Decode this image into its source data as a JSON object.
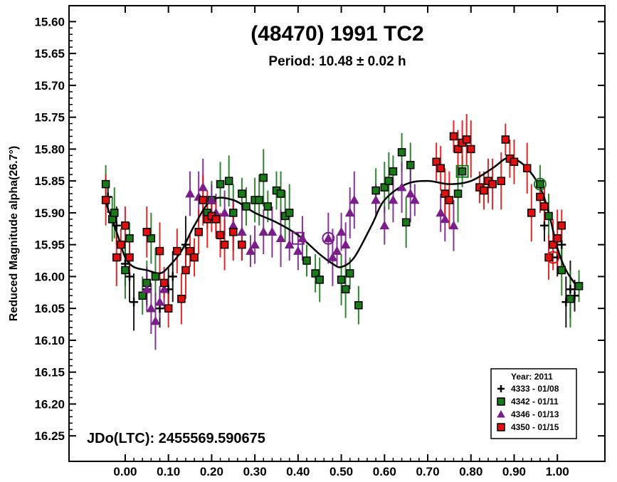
{
  "chart_data": {
    "type": "scatter",
    "title": "(48470) 1991 TC2",
    "subtitle": "Period: 10.48 ± 0.02 h",
    "ylabel": "Reduced Magnitude alpha(26.7°)",
    "xlabel": "",
    "annotation": "JDo(LTC): 2455569.590675",
    "xlim": [
      -0.13,
      1.11
    ],
    "ylim": [
      15.575,
      16.29
    ],
    "y_inverted": true,
    "grid": false,
    "legend_position": "bottom-right",
    "legend_title": "Year: 2011",
    "x_ticks": [
      "0.00",
      "0.10",
      "0.20",
      "0.30",
      "0.40",
      "0.50",
      "0.60",
      "0.70",
      "0.80",
      "0.90",
      "1.00"
    ],
    "y_ticks": [
      "15.60",
      "15.65",
      "15.70",
      "15.75",
      "15.80",
      "15.85",
      "15.90",
      "15.95",
      "16.00",
      "16.05",
      "16.10",
      "16.15",
      "16.20",
      "16.25"
    ],
    "fit_curve": [
      [
        -0.05,
        15.875
      ],
      [
        -0.02,
        15.93
      ],
      [
        0.0,
        15.97
      ],
      [
        0.02,
        15.985
      ],
      [
        0.05,
        15.99
      ],
      [
        0.08,
        15.995
      ],
      [
        0.1,
        15.985
      ],
      [
        0.13,
        15.96
      ],
      [
        0.16,
        15.92
      ],
      [
        0.2,
        15.88
      ],
      [
        0.25,
        15.88
      ],
      [
        0.3,
        15.9
      ],
      [
        0.35,
        15.915
      ],
      [
        0.4,
        15.935
      ],
      [
        0.45,
        15.965
      ],
      [
        0.48,
        15.98
      ],
      [
        0.5,
        15.985
      ],
      [
        0.53,
        15.97
      ],
      [
        0.57,
        15.92
      ],
      [
        0.6,
        15.88
      ],
      [
        0.65,
        15.855
      ],
      [
        0.7,
        15.85
      ],
      [
        0.75,
        15.855
      ],
      [
        0.8,
        15.85
      ],
      [
        0.85,
        15.83
      ],
      [
        0.88,
        15.815
      ],
      [
        0.9,
        15.815
      ],
      [
        0.93,
        15.83
      ],
      [
        0.96,
        15.86
      ],
      [
        0.98,
        15.9
      ],
      [
        1.0,
        15.955
      ],
      [
        1.02,
        15.99
      ],
      [
        1.05,
        16.02
      ]
    ],
    "series": [
      {
        "name": "4333 - 01/08",
        "marker": "plus",
        "color": "#000000",
        "points": [
          [
            -0.04,
            15.875
          ],
          [
            -0.02,
            15.92
          ],
          [
            0.0,
            15.98
          ],
          [
            0.01,
            16.0
          ],
          [
            0.02,
            16.04
          ],
          [
            0.05,
            16.02
          ],
          [
            0.08,
            16.05
          ],
          [
            0.1,
            16.02
          ],
          [
            0.11,
            16.0
          ],
          [
            0.14,
            15.95
          ],
          [
            0.97,
            15.92
          ],
          [
            1.0,
            15.97
          ],
          [
            1.01,
            15.95
          ],
          [
            1.02,
            16.04
          ],
          [
            1.03,
            16.02
          ],
          [
            1.04,
            16.03
          ]
        ]
      },
      {
        "name": "4342 - 01/11",
        "marker": "square",
        "color": "#1a7a1a",
        "points": [
          [
            -0.045,
            15.855
          ],
          [
            -0.03,
            15.91
          ],
          [
            -0.025,
            15.9
          ],
          [
            0.0,
            15.99
          ],
          [
            0.01,
            15.94
          ],
          [
            0.04,
            16.03
          ],
          [
            0.05,
            16.01
          ],
          [
            0.06,
            15.94
          ],
          [
            0.07,
            16.0
          ],
          [
            0.19,
            15.9
          ],
          [
            0.2,
            15.88
          ],
          [
            0.22,
            15.855
          ],
          [
            0.24,
            15.85
          ],
          [
            0.25,
            15.9
          ],
          [
            0.27,
            15.87
          ],
          [
            0.28,
            15.89
          ],
          [
            0.3,
            15.88
          ],
          [
            0.31,
            15.88
          ],
          [
            0.32,
            15.845
          ],
          [
            0.33,
            15.89
          ],
          [
            0.35,
            15.865
          ],
          [
            0.36,
            15.87
          ],
          [
            0.37,
            15.905
          ],
          [
            0.38,
            15.9
          ],
          [
            0.42,
            15.975
          ],
          [
            0.44,
            15.995
          ],
          [
            0.45,
            16.005
          ],
          [
            0.5,
            16.005
          ],
          [
            0.51,
            16.02
          ],
          [
            0.52,
            15.995
          ],
          [
            0.54,
            16.045
          ],
          [
            0.58,
            15.865
          ],
          [
            0.6,
            15.86
          ],
          [
            0.61,
            15.85
          ],
          [
            0.62,
            15.835
          ],
          [
            0.64,
            15.805
          ],
          [
            0.66,
            15.825
          ],
          [
            0.65,
            15.915
          ],
          [
            0.77,
            15.87
          ],
          [
            0.78,
            15.835
          ],
          [
            0.96,
            15.855
          ],
          [
            0.98,
            15.905
          ],
          [
            1.01,
            15.99
          ],
          [
            1.03,
            16.035
          ],
          [
            1.05,
            16.015
          ]
        ]
      },
      {
        "name": "4346 - 01/13",
        "marker": "triangle",
        "color": "#7a1f8a",
        "points": [
          [
            0.05,
            16.02
          ],
          [
            0.06,
            16.05
          ],
          [
            0.07,
            16.07
          ],
          [
            0.08,
            16.04
          ],
          [
            0.09,
            16.02
          ],
          [
            0.15,
            15.87
          ],
          [
            0.17,
            15.875
          ],
          [
            0.18,
            15.86
          ],
          [
            0.2,
            15.88
          ],
          [
            0.21,
            15.9
          ],
          [
            0.23,
            15.9
          ],
          [
            0.25,
            15.92
          ],
          [
            0.27,
            15.93
          ],
          [
            0.29,
            15.96
          ],
          [
            0.3,
            15.95
          ],
          [
            0.32,
            15.93
          ],
          [
            0.34,
            15.93
          ],
          [
            0.36,
            15.94
          ],
          [
            0.38,
            15.95
          ],
          [
            0.4,
            15.96
          ],
          [
            0.41,
            15.94
          ],
          [
            0.47,
            15.94
          ],
          [
            0.48,
            15.97
          ],
          [
            0.49,
            15.96
          ],
          [
            0.5,
            15.93
          ],
          [
            0.51,
            15.95
          ],
          [
            0.52,
            15.9
          ],
          [
            0.53,
            15.88
          ],
          [
            0.58,
            15.88
          ],
          [
            0.6,
            15.92
          ],
          [
            0.62,
            15.88
          ],
          [
            0.64,
            15.86
          ],
          [
            0.66,
            15.87
          ],
          [
            0.67,
            15.88
          ],
          [
            0.73,
            15.9
          ],
          [
            0.74,
            15.91
          ],
          [
            0.76,
            15.92
          ]
        ]
      },
      {
        "name": "4350 - 01/15",
        "marker": "square",
        "color": "#e01010",
        "points": [
          [
            -0.045,
            15.88
          ],
          [
            -0.02,
            15.97
          ],
          [
            -0.01,
            15.95
          ],
          [
            0.0,
            15.92
          ],
          [
            0.01,
            15.97
          ],
          [
            0.05,
            15.93
          ],
          [
            0.08,
            15.96
          ],
          [
            0.09,
            16.01
          ],
          [
            0.1,
            16.05
          ],
          [
            0.12,
            15.96
          ],
          [
            0.13,
            16.035
          ],
          [
            0.14,
            15.99
          ],
          [
            0.15,
            15.96
          ],
          [
            0.16,
            15.97
          ],
          [
            0.17,
            15.93
          ],
          [
            0.18,
            15.88
          ],
          [
            0.19,
            15.91
          ],
          [
            0.2,
            15.905
          ],
          [
            0.21,
            15.91
          ],
          [
            0.22,
            15.935
          ],
          [
            0.23,
            15.95
          ],
          [
            0.25,
            15.93
          ],
          [
            0.27,
            15.95
          ],
          [
            0.72,
            15.82
          ],
          [
            0.73,
            15.83
          ],
          [
            0.74,
            15.87
          ],
          [
            0.75,
            15.88
          ],
          [
            0.76,
            15.78
          ],
          [
            0.77,
            15.8
          ],
          [
            0.78,
            15.79
          ],
          [
            0.79,
            15.785
          ],
          [
            0.8,
            15.8
          ],
          [
            0.82,
            15.86
          ],
          [
            0.83,
            15.865
          ],
          [
            0.84,
            15.85
          ],
          [
            0.85,
            15.855
          ],
          [
            0.87,
            15.85
          ],
          [
            0.88,
            15.785
          ],
          [
            0.89,
            15.815
          ],
          [
            0.9,
            15.82
          ],
          [
            0.93,
            15.83
          ],
          [
            0.94,
            15.9
          ],
          [
            0.96,
            15.875
          ],
          [
            0.97,
            15.89
          ],
          [
            0.98,
            15.97
          ],
          [
            0.99,
            15.95
          ],
          [
            1.0,
            15.94
          ],
          [
            1.01,
            15.92
          ]
        ]
      }
    ],
    "highlighted_points": [
      {
        "marker": "square",
        "color": "#7a1f8a",
        "point": [
          0.4,
          15.94
        ]
      },
      {
        "marker": "circle",
        "color": "#7a1f8a",
        "point": [
          0.47,
          15.94
        ]
      },
      {
        "marker": "square",
        "color": "#1a7a1a",
        "point": [
          0.78,
          15.835
        ]
      },
      {
        "marker": "circle",
        "color": "#1a7a1a",
        "point": [
          0.96,
          15.855
        ]
      },
      {
        "marker": "circle",
        "color": "#e01010",
        "point": [
          0.99,
          15.97
        ]
      }
    ]
  }
}
